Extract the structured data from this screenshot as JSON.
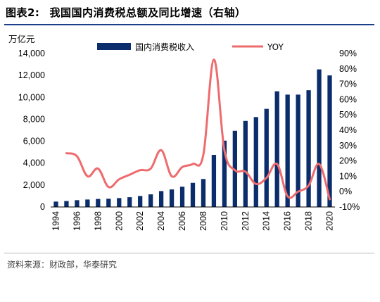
{
  "figure": {
    "label": "图表2:",
    "title": "我国国内消费税总额及同比增速（右轴）",
    "source": "资料来源：财政部，华泰研究"
  },
  "colors": {
    "bar": "#0b2d6b",
    "line": "#ee6b6e",
    "accent": "#1d3f8a"
  },
  "chart_data": {
    "type": "bar+line",
    "unit_left": "万亿元",
    "x_ticks": [
      "1994",
      "1996",
      "1998",
      "2000",
      "2002",
      "2004",
      "2006",
      "2008",
      "2010",
      "2012",
      "2014",
      "2016",
      "2018",
      "2020"
    ],
    "categories": [
      1994,
      1995,
      1996,
      1997,
      1998,
      1999,
      2000,
      2001,
      2002,
      2003,
      2004,
      2005,
      2006,
      2007,
      2008,
      2009,
      2010,
      2011,
      2012,
      2013,
      2014,
      2015,
      2016,
      2017,
      2018,
      2019,
      2020
    ],
    "series": [
      {
        "name": "国内消费税收入",
        "type": "bar",
        "axis": "left",
        "values": [
          490,
          540,
          620,
          680,
          730,
          750,
          810,
          890,
          1000,
          1150,
          1450,
          1600,
          1850,
          2200,
          2550,
          4750,
          6050,
          6950,
          7850,
          8200,
          8950,
          10550,
          10250,
          10250,
          10650,
          12550,
          12000
        ]
      },
      {
        "name": "YOY",
        "type": "line",
        "axis": "right",
        "values": [
          null,
          25,
          23,
          10,
          15,
          3,
          8,
          11,
          14,
          15,
          27,
          10,
          16,
          18,
          24,
          86,
          27,
          14,
          13,
          5,
          9,
          18,
          -3,
          0,
          4,
          18,
          -5
        ]
      }
    ],
    "y_left": {
      "min": 0,
      "max": 14000,
      "ticks": [
        "0",
        "2,000",
        "4,000",
        "6,000",
        "8,000",
        "10,000",
        "12,000",
        "14,000"
      ]
    },
    "y_right": {
      "min": -10,
      "max": 90,
      "ticks": [
        "-10%",
        "0%",
        "10%",
        "20%",
        "30%",
        "40%",
        "50%",
        "60%",
        "70%",
        "80%",
        "90%"
      ]
    },
    "legend_position": "top"
  }
}
